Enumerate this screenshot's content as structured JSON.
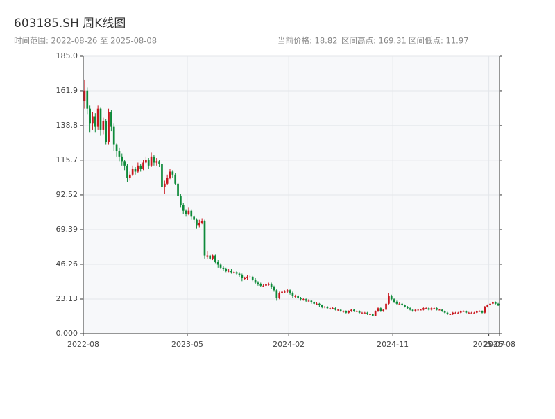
{
  "chart_data": {
    "type": "candlestick",
    "title": "603185.SH 周K线图",
    "subtitle": "时间范围: 2022-08-26 至 2025-08-08",
    "stats": [
      "当前价格: 18.82",
      "区间高点: 169.31",
      "区间低点: 11.97"
    ],
    "up_color": "#c8161d",
    "down_color": "#0e8a3a",
    "grid": true,
    "ylim": [
      0,
      185
    ],
    "yticks": [
      {
        "value": 0,
        "label": "0.000"
      },
      23.13,
      46.26,
      69.39,
      92.52,
      115.7,
      138.8,
      161.9,
      {
        "value": 185,
        "label": "185.0"
      }
    ],
    "xlim": [
      0,
      156
    ],
    "xticks": [
      {
        "value": 0,
        "label": "2022-08"
      },
      {
        "value": 39,
        "label": "2023-05"
      },
      {
        "value": 77,
        "label": "2024-02"
      },
      {
        "value": 116,
        "label": "2024-11"
      },
      {
        "value": 152,
        "label": "2025-07"
      },
      {
        "value": 156,
        "label": "2025-08"
      }
    ],
    "ohlc": [
      [
        155,
        169.31,
        150,
        162
      ],
      [
        162,
        164,
        146,
        150
      ],
      [
        150,
        152,
        134,
        140
      ],
      [
        140,
        148,
        136,
        145
      ],
      [
        145,
        147,
        134,
        138
      ],
      [
        138,
        152,
        136,
        150
      ],
      [
        150,
        151,
        132,
        136
      ],
      [
        136,
        144,
        133,
        142
      ],
      [
        142,
        143,
        126,
        128
      ],
      [
        128,
        150,
        126,
        148
      ],
      [
        148,
        149,
        135,
        138
      ],
      [
        138,
        140,
        122,
        126
      ],
      [
        126,
        127,
        118,
        122
      ],
      [
        122,
        124,
        115,
        118
      ],
      [
        118,
        120,
        112,
        115
      ],
      [
        115,
        116,
        109,
        112
      ],
      [
        112,
        113,
        101,
        104
      ],
      [
        104,
        108,
        102,
        106
      ],
      [
        106,
        112,
        105,
        110
      ],
      [
        110,
        111,
        106,
        108
      ],
      [
        108,
        114,
        107,
        112
      ],
      [
        112,
        113,
        108,
        110
      ],
      [
        110,
        116,
        109,
        114
      ],
      [
        114,
        118,
        113,
        116
      ],
      [
        116,
        117,
        110,
        112
      ],
      [
        112,
        121,
        111,
        118
      ],
      [
        118,
        119,
        112,
        114
      ],
      [
        114,
        117,
        112,
        115
      ],
      [
        115,
        116,
        111,
        113
      ],
      [
        113,
        114,
        96,
        98
      ],
      [
        98,
        102,
        93,
        100
      ],
      [
        100,
        106,
        99,
        104
      ],
      [
        104,
        110,
        103,
        108
      ],
      [
        108,
        109,
        104,
        106
      ],
      [
        106,
        107,
        99,
        100
      ],
      [
        100,
        101,
        90,
        92
      ],
      [
        92,
        93,
        84,
        86
      ],
      [
        86,
        87,
        80,
        82
      ],
      [
        82,
        83,
        78,
        80
      ],
      [
        80,
        84,
        79,
        82
      ],
      [
        82,
        83,
        76,
        78
      ],
      [
        78,
        79,
        74,
        76
      ],
      [
        76,
        77,
        70,
        72
      ],
      [
        72,
        76,
        71,
        74
      ],
      [
        74,
        77,
        73,
        75
      ],
      [
        75,
        76,
        50,
        52
      ],
      [
        52,
        55,
        50,
        52
      ],
      [
        52,
        53,
        49,
        50
      ],
      [
        50,
        53,
        49,
        52
      ],
      [
        52,
        53,
        47,
        48
      ],
      [
        48,
        49,
        44,
        46
      ],
      [
        46,
        47,
        43,
        44
      ],
      [
        44,
        45,
        42,
        43
      ],
      [
        43,
        44,
        41,
        42
      ],
      [
        42,
        43,
        41,
        42
      ],
      [
        42,
        43,
        40,
        41
      ],
      [
        41,
        42,
        40,
        41
      ],
      [
        41,
        42,
        39,
        40
      ],
      [
        40,
        41,
        38,
        39
      ],
      [
        39,
        40,
        35,
        37
      ],
      [
        37,
        38,
        36,
        37
      ],
      [
        37,
        39,
        36,
        38
      ],
      [
        38,
        39,
        37,
        38
      ],
      [
        38,
        38.5,
        35,
        36
      ],
      [
        36,
        37,
        33,
        34
      ],
      [
        34,
        35,
        32,
        33
      ],
      [
        33,
        34,
        31,
        32
      ],
      [
        32,
        33,
        31,
        32
      ],
      [
        32,
        34,
        31,
        33
      ],
      [
        33,
        34,
        32,
        33
      ],
      [
        33,
        34,
        30,
        31
      ],
      [
        31,
        32,
        28,
        29
      ],
      [
        29,
        30,
        22,
        24
      ],
      [
        24,
        28,
        23,
        27
      ],
      [
        27,
        29,
        26,
        28
      ],
      [
        28,
        29,
        27,
        28
      ],
      [
        28,
        30,
        27,
        29
      ],
      [
        29,
        29.5,
        26,
        27
      ],
      [
        27,
        28,
        24,
        25
      ],
      [
        25,
        26,
        24,
        25
      ],
      [
        25,
        26,
        23,
        24
      ],
      [
        24,
        24.5,
        22,
        23
      ],
      [
        23,
        24,
        22,
        23
      ],
      [
        23,
        23.5,
        21,
        22
      ],
      [
        22,
        23,
        21,
        22
      ],
      [
        22,
        22.5,
        20,
        21
      ],
      [
        21,
        21.5,
        19,
        20
      ],
      [
        20,
        21,
        19,
        20
      ],
      [
        20,
        20.5,
        18,
        19
      ],
      [
        19,
        19.5,
        17,
        18
      ],
      [
        18,
        18.5,
        17,
        18
      ],
      [
        18,
        18.5,
        16.5,
        17
      ],
      [
        17,
        17.5,
        16,
        17
      ],
      [
        17,
        18,
        16.5,
        17
      ],
      [
        17,
        17.5,
        15.5,
        16
      ],
      [
        16,
        16.5,
        15,
        16
      ],
      [
        16,
        16.5,
        14.5,
        15
      ],
      [
        15,
        15.5,
        14,
        15
      ],
      [
        15,
        15.5,
        13.5,
        14
      ],
      [
        14,
        15.5,
        13.5,
        15
      ],
      [
        15,
        16.5,
        14.5,
        16
      ],
      [
        16,
        16.5,
        14.5,
        15
      ],
      [
        15,
        15.5,
        14.5,
        15
      ],
      [
        15,
        15.5,
        13.5,
        14
      ],
      [
        14,
        14.5,
        13.5,
        14
      ],
      [
        14,
        14.5,
        13.5,
        14
      ],
      [
        14,
        14.5,
        12.5,
        13
      ],
      [
        13,
        13.5,
        12.5,
        13
      ],
      [
        13,
        13.5,
        11.97,
        12
      ],
      [
        12,
        15.5,
        12,
        15
      ],
      [
        15,
        17.5,
        14.5,
        17
      ],
      [
        17,
        17.5,
        14.5,
        15
      ],
      [
        15,
        16.5,
        14.5,
        16
      ],
      [
        16,
        21,
        15.5,
        20
      ],
      [
        20,
        27,
        19.5,
        25
      ],
      [
        25,
        26,
        22,
        23
      ],
      [
        23,
        24,
        20.5,
        21
      ],
      [
        21,
        22,
        19.5,
        20
      ],
      [
        20,
        21,
        19.5,
        20
      ],
      [
        20,
        20.5,
        18.5,
        19
      ],
      [
        19,
        19.5,
        17.5,
        18
      ],
      [
        18,
        18.5,
        16.5,
        17
      ],
      [
        17,
        17.5,
        15.5,
        16
      ],
      [
        16,
        16.5,
        14.5,
        15
      ],
      [
        15,
        16.5,
        14.5,
        16
      ],
      [
        16,
        16.5,
        15.5,
        16
      ],
      [
        16,
        16.5,
        15.5,
        16
      ],
      [
        16,
        17.5,
        15.5,
        17
      ],
      [
        17,
        17.5,
        16.5,
        17
      ],
      [
        17,
        17.5,
        15.5,
        16
      ],
      [
        16,
        17.5,
        15.5,
        17
      ],
      [
        17,
        17.5,
        16.5,
        17
      ],
      [
        17,
        17.5,
        15.5,
        16
      ],
      [
        16,
        16.5,
        15.5,
        16
      ],
      [
        16,
        16.5,
        14.5,
        15
      ],
      [
        15,
        15.5,
        13.5,
        14
      ],
      [
        14,
        14.5,
        12.5,
        13
      ],
      [
        13,
        13.5,
        12.5,
        13
      ],
      [
        13,
        14.5,
        12.5,
        14
      ],
      [
        14,
        14.5,
        13.5,
        14
      ],
      [
        14,
        14.5,
        13.5,
        14
      ],
      [
        14,
        15.5,
        13.5,
        15
      ],
      [
        15,
        15.5,
        14.5,
        15
      ],
      [
        15,
        15.5,
        13.5,
        14
      ],
      [
        14,
        14.5,
        13.5,
        14
      ],
      [
        14,
        14.5,
        13.5,
        14
      ],
      [
        14,
        14.5,
        13.5,
        14
      ],
      [
        14,
        15.5,
        13.5,
        15
      ],
      [
        15,
        15.5,
        14.5,
        15
      ],
      [
        15,
        15.5,
        13.5,
        14
      ],
      [
        14,
        18.5,
        13.5,
        18
      ],
      [
        18,
        19.5,
        17.5,
        19
      ],
      [
        19,
        20.5,
        18.5,
        20
      ],
      [
        20,
        21.5,
        19.5,
        21
      ],
      [
        21,
        21.5,
        19.5,
        20
      ],
      [
        20,
        20.5,
        18.5,
        18.82
      ]
    ]
  }
}
